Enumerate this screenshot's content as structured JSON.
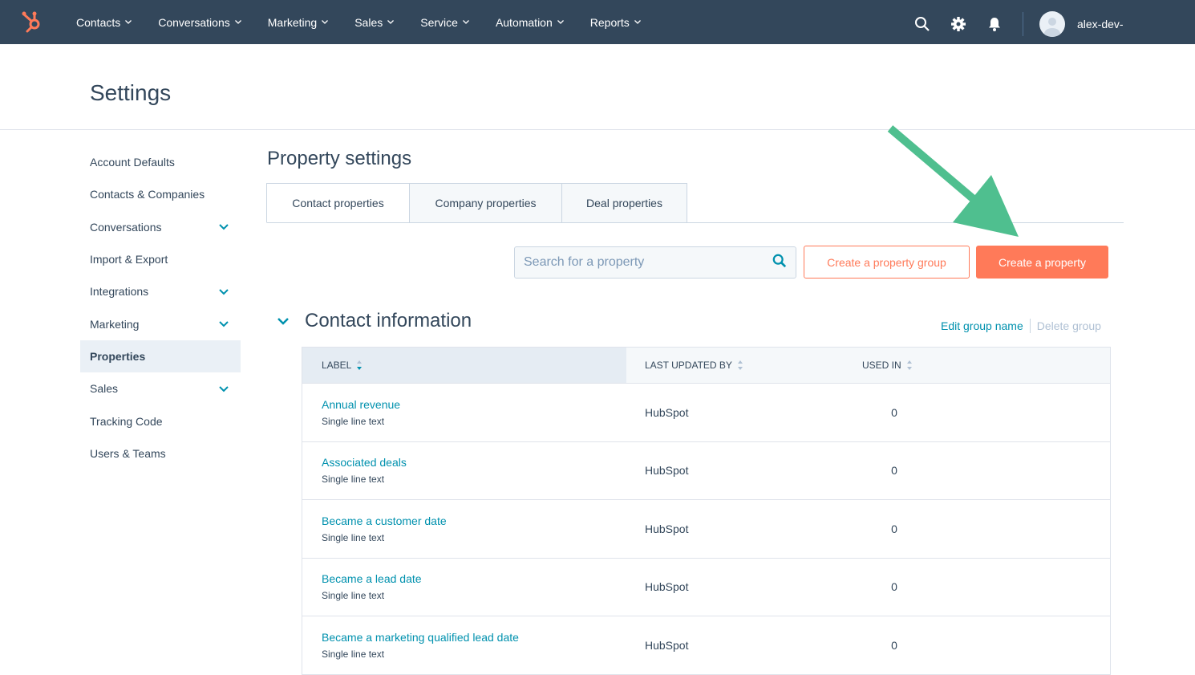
{
  "topnav": {
    "items": [
      "Contacts",
      "Conversations",
      "Marketing",
      "Sales",
      "Service",
      "Automation",
      "Reports"
    ],
    "username": "alex-dev-",
    "icons": [
      "search-icon",
      "gear-icon",
      "bell-icon"
    ]
  },
  "page_title": "Settings",
  "sidebar": {
    "items": [
      {
        "label": "Account Defaults",
        "expandable": false
      },
      {
        "label": "Contacts & Companies",
        "expandable": false
      },
      {
        "label": "Conversations",
        "expandable": true
      },
      {
        "label": "Import & Export",
        "expandable": false
      },
      {
        "label": "Integrations",
        "expandable": true
      },
      {
        "label": "Marketing",
        "expandable": true
      },
      {
        "label": "Properties",
        "expandable": false,
        "active": true
      },
      {
        "label": "Sales",
        "expandable": true
      },
      {
        "label": "Tracking Code",
        "expandable": false
      },
      {
        "label": "Users & Teams",
        "expandable": false
      }
    ]
  },
  "main": {
    "title": "Property settings",
    "tabs": [
      {
        "label": "Contact properties",
        "active": true
      },
      {
        "label": "Company properties"
      },
      {
        "label": "Deal properties"
      }
    ],
    "search_placeholder": "Search for a property",
    "create_group_label": "Create a property group",
    "create_property_label": "Create a property",
    "group": {
      "title": "Contact information",
      "edit_label": "Edit group name",
      "delete_label": "Delete group",
      "columns": [
        "Label",
        "Last updated by",
        "Used in"
      ],
      "rows": [
        {
          "label": "Annual revenue",
          "type": "Single line text",
          "updated_by": "HubSpot",
          "used_in": "0"
        },
        {
          "label": "Associated deals",
          "type": "Single line text",
          "updated_by": "HubSpot",
          "used_in": "0"
        },
        {
          "label": "Became a customer date",
          "type": "Single line text",
          "updated_by": "HubSpot",
          "used_in": "0"
        },
        {
          "label": "Became a lead date",
          "type": "Single line text",
          "updated_by": "HubSpot",
          "used_in": "0"
        },
        {
          "label": "Became a marketing qualified lead date",
          "type": "Single line text",
          "updated_by": "HubSpot",
          "used_in": "0"
        }
      ]
    }
  },
  "colors": {
    "nav": "#33475b",
    "accent": "#ff7a59",
    "link": "#0091ae",
    "annotation_arrow": "#4fbf8f"
  }
}
